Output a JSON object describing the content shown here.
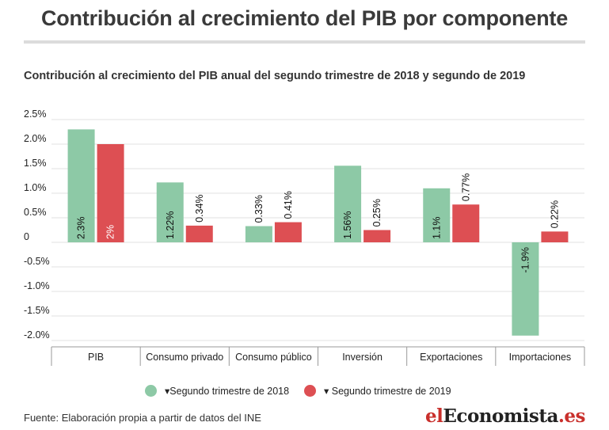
{
  "title": "Contribución al crecimiento del PIB por componente",
  "subtitle": "Contribución al crecimiento del PIB anual del segundo trimestre de 2018 y segundo de 2019",
  "source": "Fuente: Elaboración propia a partir de datos del INE",
  "logo": {
    "prefix": "el",
    "main": "Economista",
    "suffix": ".es"
  },
  "colors": {
    "series_2018": "#8dc9a6",
    "series_2019": "#dd4f53",
    "grid": "#e2e2e2",
    "text": "#222222"
  },
  "chart_data": {
    "type": "bar",
    "categories": [
      "PIB",
      "Consumo privado",
      "Consumo público",
      "Inversión",
      "Exportaciones",
      "Importaciones"
    ],
    "series": [
      {
        "name": "▾Segundo trimestre de 2018",
        "values": [
          2.3,
          1.22,
          0.33,
          1.56,
          1.1,
          -1.9
        ],
        "labels": [
          "2.3%",
          "1.22%",
          "0.33%",
          "1.56%",
          "1.1%",
          "-1.9%"
        ]
      },
      {
        "name": "▾ Segundo trimestre de 2019",
        "values": [
          2.0,
          0.34,
          0.41,
          0.25,
          0.77,
          0.22
        ],
        "labels": [
          "2%",
          "0.34%",
          "0.41%",
          "0.25%",
          "0.77%",
          "0.22%"
        ]
      }
    ],
    "yticks": [
      2.5,
      2.0,
      1.5,
      1.0,
      0.5,
      0,
      -0.5,
      -1.0,
      -1.5,
      -2.0
    ],
    "ytick_labels": [
      "2.5%",
      "2.0%",
      "1.5%",
      "1.0%",
      "0.5%",
      "0",
      "-0.5%",
      "-1.0%",
      "-1.5%",
      "-2.0%"
    ],
    "ylim": [
      -2.0,
      2.5
    ],
    "grid": true,
    "legend_position": "bottom-center"
  }
}
